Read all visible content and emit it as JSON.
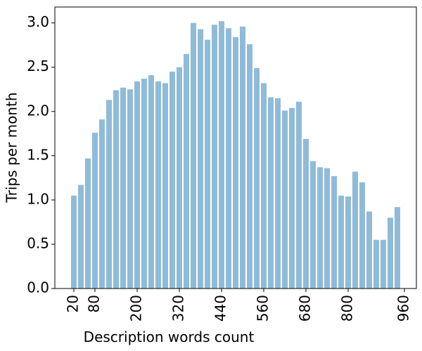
{
  "chart_data": {
    "type": "bar",
    "xlabel": "Description words count",
    "ylabel": "Trips per month",
    "x": [
      20,
      40,
      60,
      80,
      100,
      120,
      140,
      160,
      180,
      200,
      220,
      240,
      260,
      280,
      300,
      320,
      340,
      360,
      380,
      400,
      420,
      440,
      460,
      480,
      500,
      520,
      540,
      560,
      580,
      600,
      620,
      640,
      660,
      680,
      700,
      720,
      740,
      760,
      780,
      800,
      820,
      840,
      860,
      880,
      900,
      920,
      940
    ],
    "values": [
      1.05,
      1.17,
      1.47,
      1.76,
      1.91,
      2.13,
      2.24,
      2.27,
      2.25,
      2.34,
      2.37,
      2.41,
      2.34,
      2.32,
      2.45,
      2.5,
      2.65,
      3.0,
      2.93,
      2.81,
      2.98,
      3.02,
      2.94,
      2.84,
      2.96,
      2.76,
      2.49,
      2.32,
      2.16,
      2.15,
      2.01,
      2.04,
      2.11,
      1.69,
      1.44,
      1.37,
      1.36,
      1.27,
      1.05,
      1.04,
      1.32,
      1.2,
      0.87,
      0.55,
      0.55,
      0.8,
      0.92
    ],
    "bar_width": 16,
    "color": "#8fbbd9",
    "xlim": [
      -34,
      994
    ],
    "xticks": [
      20,
      80,
      200,
      320,
      440,
      560,
      680,
      800,
      960
    ],
    "ylim": [
      0,
      3.18
    ],
    "yticks": [
      {
        "value": 0,
        "label": "0.0"
      },
      {
        "value": 0.5,
        "label": "0.5"
      },
      {
        "value": 1,
        "label": "1.0"
      },
      {
        "value": 1.5,
        "label": "1.5"
      },
      {
        "value": 2,
        "label": "2.0"
      },
      {
        "value": 2.5,
        "label": "2.5"
      },
      {
        "value": 3,
        "label": "3.0"
      }
    ]
  }
}
